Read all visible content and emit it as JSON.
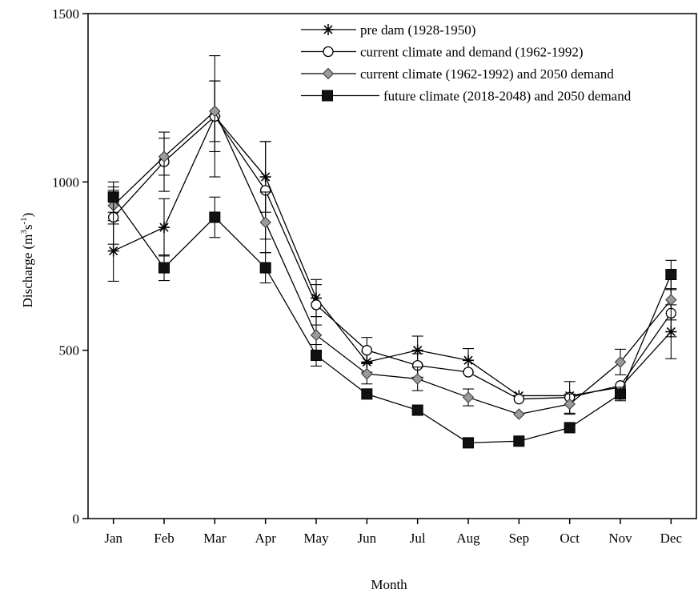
{
  "chart_data": {
    "type": "line",
    "title": "",
    "xlabel": "Month",
    "ylabel": "Discharge (m",
    "ylabel_sup1": "3",
    "ylabel_mid": "s",
    "ylabel_sup2": "-1",
    "ylabel_end": ")",
    "ylim": [
      0,
      1500
    ],
    "yticks": [
      0,
      500,
      1000,
      1500
    ],
    "categories": [
      "Jan",
      "Feb",
      "Mar",
      "Apr",
      "May",
      "Jun",
      "Jul",
      "Aug",
      "Sep",
      "Oct",
      "Nov",
      "Dec"
    ],
    "legend_position": "top-right",
    "grid": false,
    "series": [
      {
        "name": "pre dam (1928-1950)",
        "marker": "asterisk",
        "values": [
          795,
          865,
          1195,
          1015,
          655,
          465,
          500,
          470,
          365,
          365,
          390,
          555
        ],
        "errors": [
          90,
          85,
          105,
          105,
          55,
          30,
          42,
          35,
          0,
          0,
          0,
          80
        ]
      },
      {
        "name": "current climate and demand (1962-1992)",
        "marker": "open-circle",
        "values": [
          895,
          1060,
          1195,
          975,
          635,
          500,
          455,
          435,
          355,
          360,
          395,
          610
        ],
        "errors": [
          80,
          88,
          180,
          145,
          60,
          38,
          35,
          0,
          0,
          47,
          0,
          70
        ]
      },
      {
        "name": " current climate (1962-1992) and 2050 demand",
        "marker": "gray-diamond",
        "values": [
          930,
          1075,
          1210,
          880,
          545,
          430,
          415,
          360,
          310,
          340,
          465,
          650
        ],
        "errors": [
          55,
          55,
          90,
          90,
          55,
          30,
          35,
          25,
          0,
          30,
          38,
          60
        ]
      },
      {
        "name": "future climate (2018-2048)  and 2050 demand",
        "marker": "filled-square",
        "values": [
          955,
          745,
          895,
          745,
          485,
          370,
          322,
          225,
          230,
          270,
          370,
          725
        ],
        "errors": [
          45,
          38,
          60,
          45,
          32,
          0,
          0,
          0,
          0,
          0,
          20,
          42
        ]
      }
    ]
  }
}
